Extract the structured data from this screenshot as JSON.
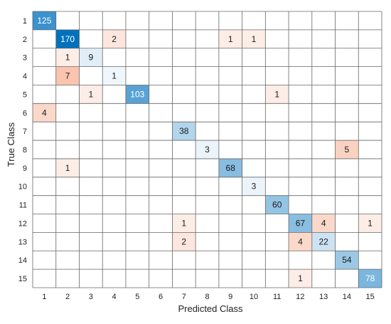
{
  "chart_data": {
    "type": "heatmap",
    "xlabel": "Predicted Class",
    "ylabel": "True Class",
    "x_categories": [
      "1",
      "2",
      "3",
      "4",
      "5",
      "6",
      "7",
      "8",
      "9",
      "10",
      "11",
      "12",
      "13",
      "14",
      "15"
    ],
    "y_categories": [
      "1",
      "2",
      "3",
      "4",
      "5",
      "6",
      "7",
      "8",
      "9",
      "10",
      "11",
      "12",
      "13",
      "14",
      "15"
    ],
    "cells": [
      {
        "true": 1,
        "pred": 1,
        "value": 125
      },
      {
        "true": 2,
        "pred": 2,
        "value": 170
      },
      {
        "true": 2,
        "pred": 4,
        "value": 2
      },
      {
        "true": 2,
        "pred": 9,
        "value": 1
      },
      {
        "true": 2,
        "pred": 10,
        "value": 1
      },
      {
        "true": 3,
        "pred": 2,
        "value": 1
      },
      {
        "true": 3,
        "pred": 3,
        "value": 9
      },
      {
        "true": 4,
        "pred": 2,
        "value": 7
      },
      {
        "true": 4,
        "pred": 4,
        "value": 1
      },
      {
        "true": 5,
        "pred": 3,
        "value": 1
      },
      {
        "true": 5,
        "pred": 5,
        "value": 103
      },
      {
        "true": 5,
        "pred": 11,
        "value": 1
      },
      {
        "true": 6,
        "pred": 1,
        "value": 4
      },
      {
        "true": 7,
        "pred": 7,
        "value": 38
      },
      {
        "true": 8,
        "pred": 8,
        "value": 3
      },
      {
        "true": 8,
        "pred": 14,
        "value": 5
      },
      {
        "true": 9,
        "pred": 2,
        "value": 1
      },
      {
        "true": 9,
        "pred": 9,
        "value": 68
      },
      {
        "true": 10,
        "pred": 10,
        "value": 3
      },
      {
        "true": 11,
        "pred": 11,
        "value": 60
      },
      {
        "true": 12,
        "pred": 7,
        "value": 1
      },
      {
        "true": 12,
        "pred": 12,
        "value": 67
      },
      {
        "true": 12,
        "pred": 13,
        "value": 4
      },
      {
        "true": 12,
        "pred": 15,
        "value": 1
      },
      {
        "true": 13,
        "pred": 7,
        "value": 2
      },
      {
        "true": 13,
        "pred": 12,
        "value": 4
      },
      {
        "true": 13,
        "pred": 13,
        "value": 22
      },
      {
        "true": 14,
        "pred": 14,
        "value": 54
      },
      {
        "true": 15,
        "pred": 12,
        "value": 1
      },
      {
        "true": 15,
        "pred": 15,
        "value": 78
      }
    ],
    "grid": true,
    "colors": {
      "diagonal_scale": "blue",
      "offdiagonal_scale": "orange-pink",
      "gridline": "#666666",
      "background": "#ffffff"
    }
  }
}
